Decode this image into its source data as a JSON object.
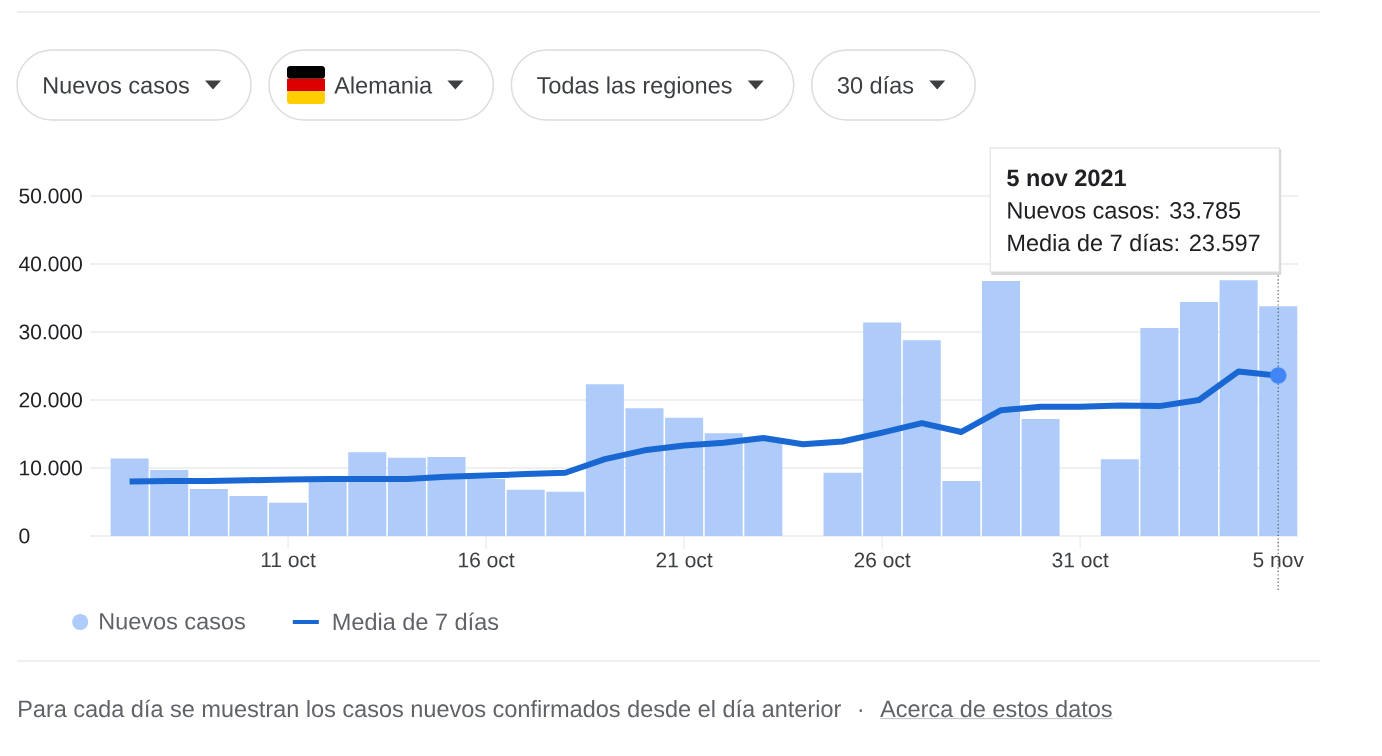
{
  "chart_data": {
    "type": "bar",
    "x": [
      "2021-10-07",
      "2021-10-08",
      "2021-10-09",
      "2021-10-10",
      "2021-10-11",
      "2021-10-12",
      "2021-10-13",
      "2021-10-14",
      "2021-10-15",
      "2021-10-16",
      "2021-10-17",
      "2021-10-18",
      "2021-10-19",
      "2021-10-20",
      "2021-10-21",
      "2021-10-22",
      "2021-10-23",
      "2021-10-24",
      "2021-10-25",
      "2021-10-26",
      "2021-10-27",
      "2021-10-28",
      "2021-10-29",
      "2021-10-30",
      "2021-10-31",
      "2021-11-01",
      "2021-11-02",
      "2021-11-03",
      "2021-11-04",
      "2021-11-05"
    ],
    "xlim": [
      "2021-10-06",
      "2021-11-05T12:00"
    ],
    "xticks": [
      {
        "value": "2021-10-11",
        "label": "11 oct"
      },
      {
        "value": "2021-10-16",
        "label": "16 oct"
      },
      {
        "value": "2021-10-21",
        "label": "21 oct"
      },
      {
        "value": "2021-10-26",
        "label": "26 oct"
      },
      {
        "value": "2021-10-31",
        "label": "31 oct"
      },
      {
        "value": "2021-11-05",
        "label": "5 nov"
      }
    ],
    "ylim": [
      0,
      50000
    ],
    "yticks": [
      0,
      {
        "value": 10000,
        "label": "10.000"
      },
      {
        "value": 20000,
        "label": "20.000"
      },
      {
        "value": 30000,
        "label": "30.000"
      },
      {
        "value": 40000,
        "label": "40.000"
      },
      {
        "value": 50000,
        "label": "50.000"
      }
    ],
    "grid": "y",
    "legend": "bottom left",
    "series": [
      {
        "name": "Nuevos casos",
        "color": "#aecbfa",
        "values": [
          11400,
          9700,
          6900,
          5900,
          4900,
          8300,
          12300,
          11500,
          11600,
          8400,
          6800,
          6500,
          22300,
          18800,
          17400,
          15100,
          14300,
          null,
          9300,
          31400,
          28800,
          8100,
          37500,
          17200,
          null,
          11300,
          30600,
          34400,
          37600,
          33785
        ]
      },
      {
        "name": "Media de 7 días",
        "type": "line",
        "color": "#1967d2",
        "line_style": "solid",
        "values": [
          8000,
          8100,
          8100,
          8200,
          8300,
          8400,
          8400,
          8400,
          8700,
          8900,
          9100,
          9300,
          11300,
          12600,
          13300,
          13700,
          14400,
          13500,
          13900,
          15200,
          16600,
          15300,
          18500,
          19000,
          19000,
          19200,
          19100,
          20000,
          24200,
          23597
        ]
      },
      {
        "type": "scatter",
        "color": "#4285f4",
        "marker": "circle",
        "x": [
          "2021-11-05"
        ],
        "values": [
          23597
        ]
      }
    ],
    "ref_lines": [
      {
        "axis": "x",
        "value": "2021-11-05",
        "color": "#5f6368",
        "line_style": "dotted"
      }
    ],
    "annotations": [
      "Nuevos casos",
      "Alemania",
      "Todas las regiones",
      "30 días",
      "5 nov 2021",
      "Nuevos casos: 33.785",
      "Media de 7 días: 23.597",
      "Para cada día se muestran los casos nuevos confirmados desde el día anterior",
      "·",
      "Acerca de estos datos"
    ]
  }
}
